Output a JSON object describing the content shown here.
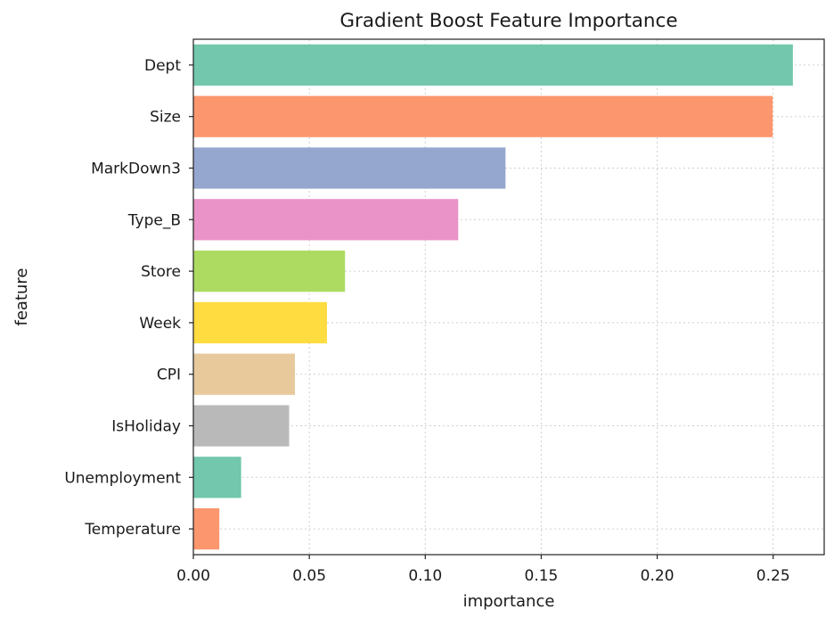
{
  "chart_data": {
    "type": "bar",
    "orientation": "horizontal",
    "title": "Gradient Boost Feature Importance",
    "xlabel": "importance",
    "ylabel": "feature",
    "xlim": [
      0,
      0.272
    ],
    "xticks": [
      0.0,
      0.05,
      0.1,
      0.15,
      0.2,
      0.25
    ],
    "xtick_labels": [
      "0.00",
      "0.05",
      "0.10",
      "0.15",
      "0.20",
      "0.25"
    ],
    "grid": true,
    "categories": [
      "Dept",
      "Size",
      "MarkDown3",
      "Type_B",
      "Store",
      "Week",
      "CPI",
      "IsHoliday",
      "Unemployment",
      "Temperature"
    ],
    "values": [
      0.2585,
      0.2498,
      0.1346,
      0.1142,
      0.0654,
      0.0576,
      0.0438,
      0.0413,
      0.0206,
      0.0112
    ],
    "colors": [
      "#66c2a5",
      "#fc8d62",
      "#8da0cb",
      "#e78ac3",
      "#a6d854",
      "#ffd92f",
      "#e5c494",
      "#b3b3b3",
      "#66c2a5",
      "#fc8d62"
    ]
  }
}
